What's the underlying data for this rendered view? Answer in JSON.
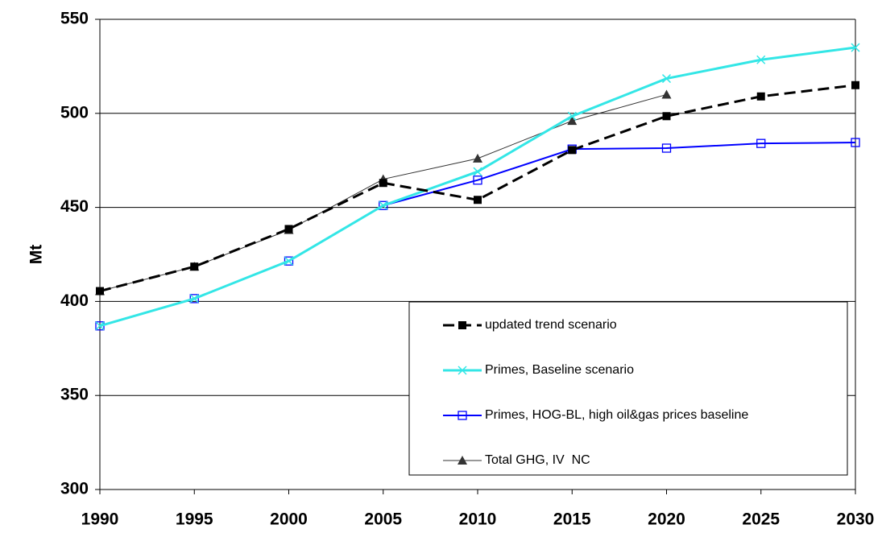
{
  "chart_data": {
    "type": "line",
    "y_label": "Mt",
    "x": [
      1990,
      1995,
      2000,
      2005,
      2010,
      2015,
      2020,
      2025,
      2030
    ],
    "xlim": [
      1990,
      2030
    ],
    "xticks": [
      1990,
      1995,
      2000,
      2005,
      2010,
      2015,
      2020,
      2025,
      2030
    ],
    "ylim": [
      300,
      550
    ],
    "yticks": [
      300,
      350,
      400,
      450,
      500,
      550
    ],
    "grid": true,
    "legend": "lower right",
    "series": [
      {
        "name": "updated trend scenario",
        "color": "#000000",
        "marker": "square",
        "dashed": true,
        "values": [
          405.5,
          418.5,
          438.5,
          463,
          454,
          480.5,
          498.5,
          509,
          515
        ]
      },
      {
        "name": "Primes, Baseline scenario",
        "color": "#33e6e6",
        "marker": "x",
        "dashed": false,
        "values": [
          387,
          401.5,
          421.5,
          451,
          469,
          498.5,
          518.5,
          528.5,
          535
        ]
      },
      {
        "name": "Primes, HOG-BL, high oil&gas prices baseline",
        "color": "#0000ff",
        "marker": "open-square",
        "dashed": false,
        "values": [
          387,
          401.5,
          421.5,
          451,
          464.5,
          481,
          481.5,
          484,
          484.5
        ]
      },
      {
        "name": "Total GHG, IV  NC",
        "color": "#333333",
        "marker": "triangle",
        "dashed": false,
        "values": [
          405.5,
          418.5,
          438,
          465,
          476,
          496,
          510,
          null,
          null
        ]
      }
    ]
  }
}
